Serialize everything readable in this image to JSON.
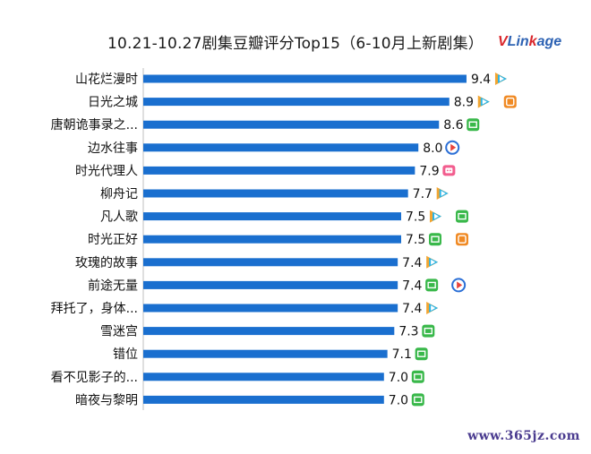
{
  "title": "10.21-10.27剧集豆瓣评分Top15（6-10月上新剧集）",
  "logo": {
    "v": "V",
    "lin": "Lin",
    "k": "k",
    "age": "age"
  },
  "watermark": "www.365jz.com",
  "colors": {
    "bar": "#1a6fcf",
    "axis": "#bfbfbf",
    "tencent_orange": "#f2a531",
    "tencent_blue": "#2bb5e8",
    "iqiyi_green": "#39b84a",
    "youku_blue": "#2b6fd6",
    "youku_red": "#e8433b",
    "mango_orange": "#f08a24",
    "bilibili_pink": "#f25d8e"
  },
  "chart_data": {
    "type": "bar",
    "orientation": "horizontal",
    "title": "10.21-10.27剧集豆瓣评分Top15（6-10月上新剧集）",
    "xlabel": "",
    "ylabel": "",
    "xlim": [
      0,
      10
    ],
    "grid": false,
    "categories": [
      "山花烂漫时",
      "日光之城",
      "唐朝诡事录之...",
      "边水往事",
      "时光代理人",
      "柳舟记",
      "凡人歌",
      "时光正好",
      "玫瑰的故事",
      "前途无量",
      "拜托了，身体...",
      "雪迷宫",
      "错位",
      "看不见影子的...",
      "暗夜与黎明"
    ],
    "values": [
      9.4,
      8.9,
      8.6,
      8.0,
      7.9,
      7.7,
      7.5,
      7.5,
      7.4,
      7.4,
      7.4,
      7.3,
      7.1,
      7.0,
      7.0
    ],
    "value_labels": [
      "9.4",
      "8.9",
      "8.6",
      "8.0",
      "7.9",
      "7.7",
      "7.5",
      "7.5",
      "7.4",
      "7.4",
      "7.4",
      "7.3",
      "7.1",
      "7.0",
      "7.0"
    ],
    "platform_icons": [
      [
        "tencent-video-icon"
      ],
      [
        "tencent-video-icon",
        "mango-tv-icon"
      ],
      [
        "iqiyi-icon"
      ],
      [
        "youku-icon"
      ],
      [
        "bilibili-icon"
      ],
      [
        "tencent-video-icon"
      ],
      [
        "tencent-video-icon",
        "iqiyi-icon"
      ],
      [
        "iqiyi-icon",
        "mango-tv-icon"
      ],
      [
        "tencent-video-icon"
      ],
      [
        "iqiyi-icon",
        "youku-icon"
      ],
      [
        "tencent-video-icon"
      ],
      [
        "iqiyi-icon"
      ],
      [
        "iqiyi-icon"
      ],
      [
        "iqiyi-icon"
      ],
      [
        "iqiyi-icon"
      ]
    ]
  }
}
